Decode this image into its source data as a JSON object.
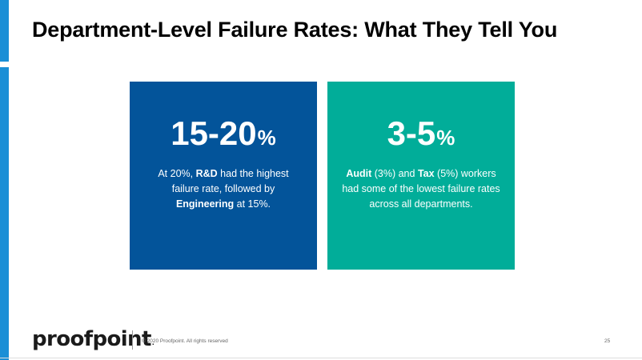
{
  "slide": {
    "title": "Department-Level Failure Rates: What They Tell You"
  },
  "colors": {
    "accent": "#1a8fd6",
    "card_left": "#03549a",
    "card_right": "#01ad99"
  },
  "cards": [
    {
      "stat_number": "15-20",
      "stat_unit": "%",
      "desc_1": "At 20%, ",
      "desc_bold_1": "R&D",
      "desc_2": " had the highest failure rate, followed by ",
      "desc_bold_2": "Engineering",
      "desc_3": " at 15%."
    },
    {
      "stat_number": "3-5",
      "stat_unit": "%",
      "desc_bold_1": "Audit",
      "desc_1": " (3%) and ",
      "desc_bold_2": "Tax",
      "desc_2": " (5%) workers had some of the lowest failure rates across all departments."
    }
  ],
  "footer": {
    "logo_text": "proofpoint",
    "logo_mark": ".",
    "copyright": "© 2020 Proofpoint. All rights reserved",
    "page_number": "25"
  }
}
